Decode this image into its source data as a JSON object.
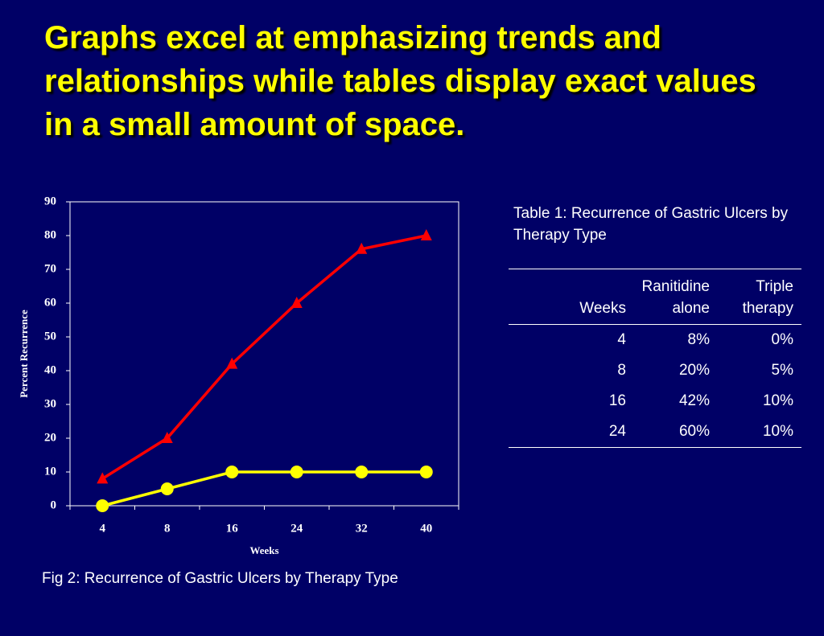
{
  "title": "Graphs excel at emphasizing trends and relationships while tables display exact values in a small amount of space.",
  "chart_data": {
    "type": "line",
    "caption": "Fig 2: Recurrence of Gastric Ulcers by Therapy Type",
    "x_label": "Weeks",
    "y_label": "Percent Recurrence",
    "categories": [
      "4",
      "8",
      "16",
      "24",
      "32",
      "40"
    ],
    "series": [
      {
        "color": "#ff0000",
        "marker": "triangle",
        "values": [
          8,
          20,
          42,
          60,
          76,
          80
        ]
      },
      {
        "color": "#ffff00",
        "marker": "circle",
        "values": [
          0,
          5,
          10,
          10,
          10,
          10
        ]
      }
    ],
    "ylim": [
      0,
      90
    ],
    "yticks": [
      0,
      10,
      20,
      30,
      40,
      50,
      60,
      70,
      80,
      90
    ],
    "grid": false
  },
  "table": {
    "caption": "Table 1: Recurrence of Gastric Ulcers by Therapy Type",
    "header": [
      "Weeks",
      "Ranitidine alone",
      "Triple therapy"
    ],
    "rows": [
      [
        "4",
        "8%",
        "0%"
      ],
      [
        "8",
        "20%",
        "5%"
      ],
      [
        "16",
        "42%",
        "10%"
      ],
      [
        "24",
        "60%",
        "10%"
      ]
    ]
  }
}
